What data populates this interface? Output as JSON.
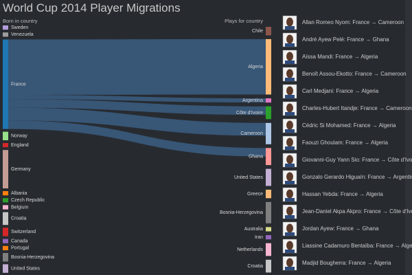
{
  "chart_data": {
    "type": "sankey",
    "title": "World Cup 2014 Player Migrations",
    "left_label": "Born in country",
    "right_label": "Plays for country",
    "left_nodes": [
      {
        "name": "Sweden",
        "color": "#b39ddb",
        "value": 1
      },
      {
        "name": "Venezuela",
        "color": "#9e9e9e",
        "value": 1
      },
      {
        "name": "France",
        "color": "#1f77b4",
        "value": 21
      },
      {
        "name": "Norway",
        "color": "#98df8a",
        "value": 2
      },
      {
        "name": "England",
        "color": "#d62728",
        "value": 1
      },
      {
        "name": "Germany",
        "color": "#c49c94",
        "value": 9
      },
      {
        "name": "Albania",
        "color": "#ff7f0e",
        "value": 1
      },
      {
        "name": "Czech Republic",
        "color": "#2ca02c",
        "value": 1
      },
      {
        "name": "Belgium",
        "color": "#f7b6d2",
        "value": 1
      },
      {
        "name": "Croatia",
        "color": "#c7c7c7",
        "value": 3
      },
      {
        "name": "Switzerland",
        "color": "#d62728",
        "value": 2
      },
      {
        "name": "Canada",
        "color": "#9467bd",
        "value": 1
      },
      {
        "name": "Portugal",
        "color": "#ff7f0e",
        "value": 1
      },
      {
        "name": "Bosnia-Herzegovina",
        "color": "#7f7f7f",
        "value": 2
      },
      {
        "name": "United States",
        "color": "#c5b0d5",
        "value": 2
      }
    ],
    "right_nodes": [
      {
        "name": "Chile",
        "color": "#8c564b",
        "value": 2
      },
      {
        "name": "Algeria",
        "color": "#ffbb78",
        "value": 13
      },
      {
        "name": "Argentina",
        "color": "#e377c2",
        "value": 1
      },
      {
        "name": "Côte d'Ivoire",
        "color": "#2ca02c",
        "value": 3
      },
      {
        "name": "Cameroon",
        "color": "#aec7e8",
        "value": 5
      },
      {
        "name": "Ghana",
        "color": "#ff9896",
        "value": 4
      },
      {
        "name": "United States",
        "color": "#c5b0d5",
        "value": 4
      },
      {
        "name": "Greece",
        "color": "#ffbb78",
        "value": 2
      },
      {
        "name": "Bosnia-Herzegovina",
        "color": "#7f7f7f",
        "value": 5
      },
      {
        "name": "Australia",
        "color": "#dbdb8d",
        "value": 1
      },
      {
        "name": "Iran",
        "color": "#9467bd",
        "value": 1
      },
      {
        "name": "Netherlands",
        "color": "#f7b6d2",
        "value": 3
      },
      {
        "name": "Croatia",
        "color": "#c7c7c7",
        "value": 3
      }
    ],
    "link_color": "#3b5b7e",
    "links": [
      {
        "source": "France",
        "target": "Algeria",
        "value": 13
      },
      {
        "source": "France",
        "target": "Argentina",
        "value": 1
      },
      {
        "source": "France",
        "target": "Côte d'Ivoire",
        "value": 2
      },
      {
        "source": "France",
        "target": "Cameroon",
        "value": 3
      },
      {
        "source": "France",
        "target": "Ghana",
        "value": 2
      }
    ],
    "players": [
      "Allan Romeo Nyom: France → Cameroon",
      "André Ayew Pelé: France → Ghana",
      "Aïssa Mandi: France → Algeria",
      "Benoît Assou-Ekotto: France → Cameroon",
      "Carl Medjani: France → Algeria",
      "Charles-Hubert Itandje: France → Cameroon",
      "Cédric Si Mohamed: France → Algeria",
      "Faouzi Ghoulam: France → Algeria",
      "Giovanni-Guy Yann Sio: France → Côte d'Ivoire",
      "Gonzalo Gerardo Higuaín: France → Argentina",
      "Hassan Yebda: France → Algeria",
      "Jean-Daniel Akpa Akpro: France → Côte d'Ivoire",
      "Jordan Ayew: France → Ghana",
      "Liassine Cadamuro Bentaïba: France → Algeria",
      "Madjid Bougherra: France → Algeria"
    ]
  }
}
